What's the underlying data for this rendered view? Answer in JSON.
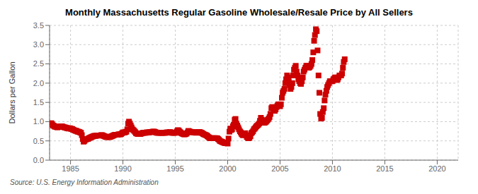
{
  "chart_data": {
    "type": "scatter",
    "title": "Monthly Massachusetts Regular Gasoline Wholesale/Resale Price by All Sellers",
    "y_label": "Dollars per Gallon",
    "annotations": [
      "Source: U.S. Energy Information Administration"
    ],
    "color": "#cc0000",
    "marker": "square",
    "grid": true,
    "xlim": [
      1983.0,
      2022.0
    ],
    "ylim": [
      0.0,
      3.5
    ],
    "xticks": [
      1985,
      1990,
      1995,
      2000,
      2005,
      2010,
      2015,
      2020
    ],
    "yticks": [
      {
        "value": 0.0,
        "label": "0.0"
      },
      0.5,
      {
        "value": 1.0,
        "label": "1.0"
      },
      1.5,
      {
        "value": 2.0,
        "label": "2.0"
      },
      2.5,
      {
        "value": 3.0,
        "label": "3.0"
      },
      3.5
    ],
    "x": [
      1983.17,
      1983.25,
      1983.33,
      1983.42,
      1983.5,
      1983.58,
      1983.67,
      1983.75,
      1983.83,
      1983.92,
      1984.0,
      1984.08,
      1984.17,
      1984.25,
      1984.33,
      1984.42,
      1984.5,
      1984.58,
      1984.67,
      1984.75,
      1984.83,
      1984.92,
      1985.0,
      1985.08,
      1985.17,
      1985.25,
      1985.33,
      1985.42,
      1985.5,
      1985.58,
      1985.67,
      1985.75,
      1985.83,
      1985.92,
      1986.0,
      1986.08,
      1986.17,
      1986.25,
      1986.33,
      1986.42,
      1986.5,
      1986.58,
      1986.67,
      1986.75,
      1986.83,
      1986.92,
      1987.0,
      1987.08,
      1987.17,
      1987.25,
      1987.33,
      1987.42,
      1987.5,
      1987.58,
      1987.67,
      1987.75,
      1987.83,
      1987.92,
      1988.0,
      1988.08,
      1988.17,
      1988.25,
      1988.33,
      1988.42,
      1988.5,
      1988.58,
      1988.67,
      1988.75,
      1988.83,
      1988.92,
      1989.0,
      1989.08,
      1989.17,
      1989.25,
      1989.33,
      1989.42,
      1989.5,
      1989.58,
      1989.67,
      1989.75,
      1989.83,
      1989.92,
      1990.0,
      1990.08,
      1990.17,
      1990.25,
      1990.33,
      1990.42,
      1990.5,
      1990.58,
      1990.67,
      1990.75,
      1990.83,
      1990.92,
      1991.0,
      1991.08,
      1991.17,
      1991.25,
      1991.33,
      1991.42,
      1991.5,
      1991.58,
      1991.67,
      1991.75,
      1991.83,
      1991.92,
      1992.0,
      1992.08,
      1992.17,
      1992.25,
      1992.33,
      1992.42,
      1992.5,
      1992.58,
      1992.67,
      1992.75,
      1992.83,
      1992.92,
      1993.0,
      1993.08,
      1993.17,
      1993.25,
      1993.33,
      1993.42,
      1993.5,
      1993.58,
      1993.67,
      1993.75,
      1993.83,
      1993.92,
      1994.0,
      1994.08,
      1994.17,
      1994.25,
      1994.33,
      1994.42,
      1994.5,
      1994.58,
      1994.67,
      1994.75,
      1994.83,
      1994.92,
      1995.0,
      1995.08,
      1995.17,
      1995.25,
      1995.33,
      1995.42,
      1995.5,
      1995.58,
      1995.67,
      1995.75,
      1995.83,
      1995.92,
      1996.0,
      1996.08,
      1996.17,
      1996.25,
      1996.33,
      1996.42,
      1996.5,
      1996.58,
      1996.67,
      1996.75,
      1996.83,
      1996.92,
      1997.0,
      1997.08,
      1997.17,
      1997.25,
      1997.33,
      1997.42,
      1997.5,
      1997.58,
      1997.67,
      1997.75,
      1997.83,
      1997.92,
      1998.0,
      1998.08,
      1998.17,
      1998.25,
      1998.33,
      1998.42,
      1998.5,
      1998.58,
      1998.67,
      1998.75,
      1998.83,
      1998.92,
      1999.0,
      1999.08,
      1999.17,
      1999.25,
      1999.33,
      1999.42,
      1999.5,
      1999.58,
      1999.67,
      1999.75,
      1999.83,
      1999.92,
      2000.0,
      2000.08,
      2000.17,
      2000.25,
      2000.33,
      2000.42,
      2000.5,
      2000.58,
      2000.67,
      2000.75,
      2000.83,
      2000.92,
      2001.0,
      2001.08,
      2001.17,
      2001.25,
      2001.33,
      2001.42,
      2001.5,
      2001.58,
      2001.67,
      2001.75,
      2001.83,
      2001.92,
      2002.0,
      2002.08,
      2002.17,
      2002.25,
      2002.33,
      2002.42,
      2002.5,
      2002.58,
      2002.67,
      2002.75,
      2002.83,
      2002.92,
      2003.0,
      2003.08,
      2003.17,
      2003.25,
      2003.33,
      2003.42,
      2003.5,
      2003.58,
      2003.67,
      2003.75,
      2003.83,
      2003.92,
      2004.0,
      2004.08,
      2004.17,
      2004.25,
      2004.33,
      2004.42,
      2004.5,
      2004.58,
      2004.67,
      2004.75,
      2004.83,
      2004.92,
      2005.0,
      2005.08,
      2005.17,
      2005.25,
      2005.33,
      2005.42,
      2005.5,
      2005.58,
      2005.67,
      2005.75,
      2005.83,
      2005.92,
      2006.0,
      2006.08,
      2006.17,
      2006.25,
      2006.33,
      2006.42,
      2006.5,
      2006.58,
      2006.67,
      2006.75,
      2006.83,
      2006.92,
      2007.0,
      2007.08,
      2007.17,
      2007.25,
      2007.33,
      2007.42,
      2007.5,
      2007.58,
      2007.67,
      2007.75,
      2007.83,
      2007.92,
      2008.0,
      2008.08,
      2008.17,
      2008.25,
      2008.33,
      2008.42,
      2008.5,
      2008.58,
      2008.67,
      2008.75,
      2008.83,
      2008.92,
      2009.0,
      2009.08,
      2009.17,
      2009.25,
      2009.33,
      2009.42,
      2009.5,
      2009.58,
      2009.67,
      2009.75,
      2009.83,
      2009.92,
      2010.0,
      2010.08,
      2010.17,
      2010.25,
      2010.33,
      2010.42,
      2010.5,
      2010.58,
      2010.67,
      2010.75,
      2010.83,
      2010.92,
      2011.0,
      2011.08,
      2011.17
    ],
    "values": [
      0.96,
      0.93,
      0.9,
      0.89,
      0.87,
      0.87,
      0.86,
      0.85,
      0.86,
      0.87,
      0.87,
      0.88,
      0.88,
      0.87,
      0.86,
      0.85,
      0.85,
      0.84,
      0.83,
      0.83,
      0.82,
      0.83,
      0.82,
      0.81,
      0.81,
      0.79,
      0.78,
      0.77,
      0.76,
      0.76,
      0.74,
      0.74,
      0.73,
      0.72,
      0.71,
      0.65,
      0.55,
      0.48,
      0.5,
      0.53,
      0.54,
      0.55,
      0.55,
      0.57,
      0.58,
      0.59,
      0.6,
      0.61,
      0.62,
      0.63,
      0.63,
      0.63,
      0.64,
      0.64,
      0.64,
      0.64,
      0.64,
      0.65,
      0.65,
      0.64,
      0.63,
      0.62,
      0.61,
      0.6,
      0.6,
      0.6,
      0.6,
      0.6,
      0.61,
      0.62,
      0.63,
      0.64,
      0.65,
      0.66,
      0.66,
      0.66,
      0.66,
      0.67,
      0.67,
      0.67,
      0.68,
      0.7,
      0.72,
      0.72,
      0.72,
      0.73,
      0.74,
      0.8,
      0.95,
      1.0,
      0.95,
      0.9,
      0.85,
      0.8,
      0.78,
      0.76,
      0.73,
      0.7,
      0.69,
      0.68,
      0.68,
      0.68,
      0.68,
      0.69,
      0.7,
      0.71,
      0.71,
      0.71,
      0.71,
      0.72,
      0.72,
      0.72,
      0.72,
      0.73,
      0.73,
      0.73,
      0.74,
      0.74,
      0.74,
      0.73,
      0.72,
      0.71,
      0.71,
      0.71,
      0.71,
      0.71,
      0.71,
      0.71,
      0.71,
      0.71,
      0.71,
      0.71,
      0.72,
      0.72,
      0.72,
      0.72,
      0.73,
      0.72,
      0.71,
      0.71,
      0.71,
      0.71,
      0.71,
      0.72,
      0.75,
      0.78,
      0.77,
      0.74,
      0.72,
      0.7,
      0.69,
      0.68,
      0.67,
      0.67,
      0.68,
      0.69,
      0.72,
      0.76,
      0.75,
      0.74,
      0.73,
      0.73,
      0.73,
      0.72,
      0.72,
      0.72,
      0.71,
      0.72,
      0.73,
      0.73,
      0.73,
      0.72,
      0.71,
      0.7,
      0.68,
      0.67,
      0.66,
      0.65,
      0.64,
      0.62,
      0.6,
      0.58,
      0.57,
      0.57,
      0.57,
      0.57,
      0.57,
      0.57,
      0.57,
      0.57,
      0.57,
      0.55,
      0.53,
      0.5,
      0.49,
      0.48,
      0.47,
      0.46,
      0.45,
      0.44,
      0.44,
      0.44,
      0.43,
      0.56,
      0.74,
      0.82,
      0.78,
      0.8,
      0.88,
      0.92,
      1.05,
      1.07,
      0.95,
      0.9,
      0.85,
      0.8,
      0.75,
      0.72,
      0.68,
      0.65,
      0.65,
      0.68,
      0.7,
      0.65,
      0.6,
      0.58,
      0.57,
      0.58,
      0.62,
      0.7,
      0.72,
      0.75,
      0.8,
      0.82,
      0.85,
      0.88,
      0.9,
      0.92,
      0.95,
      1.02,
      1.1,
      1.05,
      1.0,
      0.98,
      0.97,
      0.98,
      1.0,
      1.03,
      1.05,
      1.08,
      1.12,
      1.2,
      1.35,
      1.38,
      1.35,
      1.3,
      1.28,
      1.32,
      1.38,
      1.42,
      1.45,
      1.42,
      1.4,
      1.45,
      1.62,
      1.75,
      1.8,
      1.85,
      2.0,
      2.1,
      2.2,
      2.15,
      2.05,
      1.95,
      1.85,
      1.9,
      2.0,
      2.2,
      2.35,
      2.4,
      2.45,
      2.3,
      2.2,
      2.1,
      2.05,
      2.0,
      1.98,
      2.05,
      2.15,
      2.3,
      2.35,
      2.4,
      2.45,
      2.45,
      2.42,
      2.4,
      2.42,
      2.45,
      2.5,
      2.6,
      2.8,
      3.1,
      3.25,
      3.4,
      3.35,
      2.85,
      2.2,
      1.75,
      1.2,
      1.08,
      1.1,
      1.25,
      1.35,
      1.55,
      1.7,
      1.8,
      1.9,
      1.95,
      2.0,
      2.05,
      2.05,
      2.05,
      2.05,
      2.1,
      2.12,
      2.15,
      2.1,
      2.08,
      2.1,
      2.15,
      2.2,
      2.2,
      2.2,
      2.25,
      2.4,
      2.55,
      2.62
    ]
  }
}
